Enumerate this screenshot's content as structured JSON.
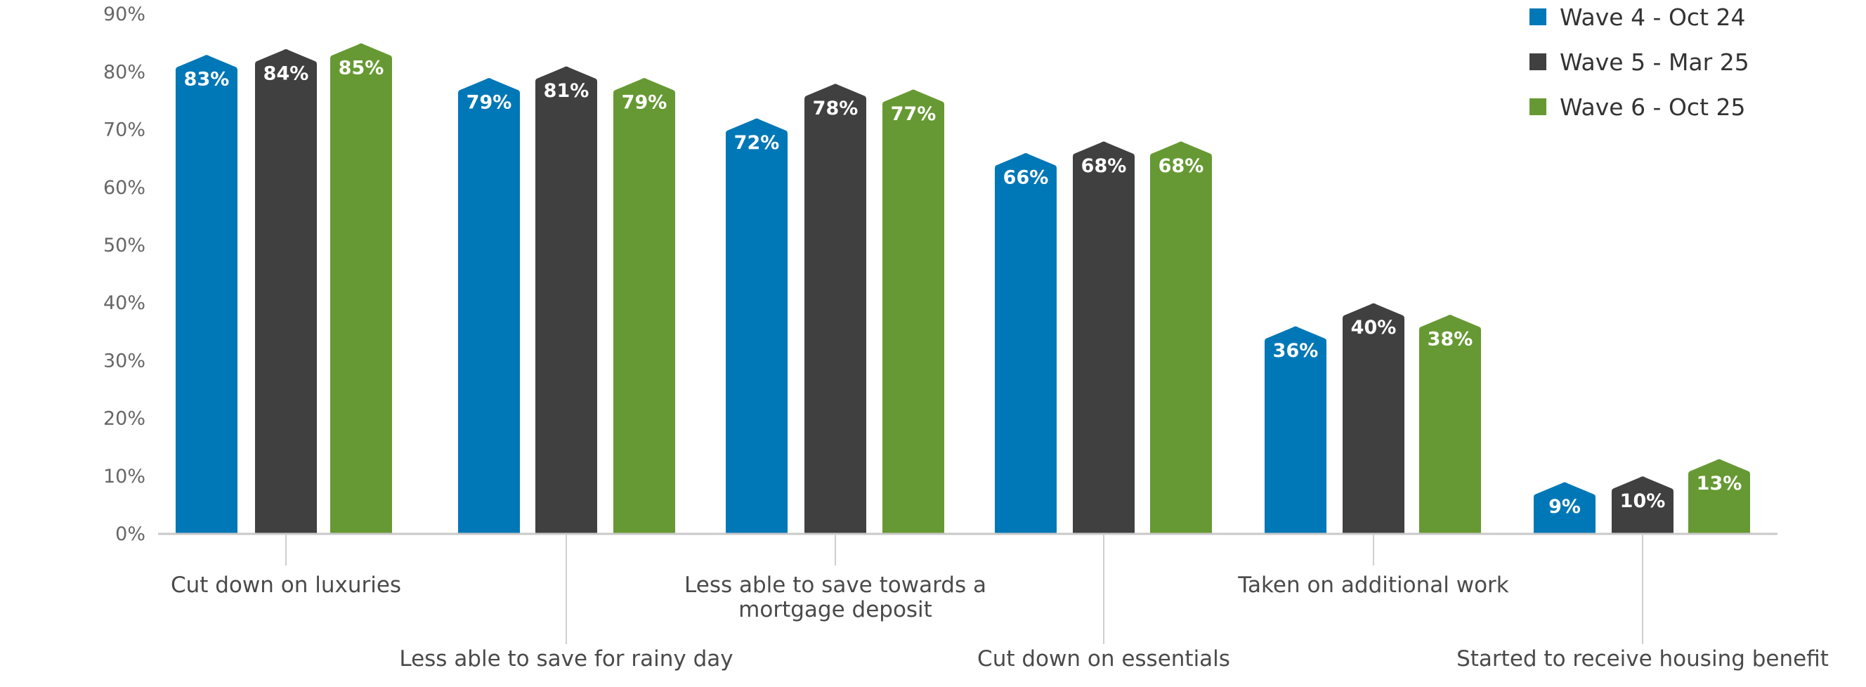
{
  "chart_data": {
    "type": "bar",
    "title": "",
    "xlabel": "",
    "ylabel": "",
    "ylim": [
      0,
      90
    ],
    "yticks": [
      "0%",
      "10%",
      "20%",
      "30%",
      "40%",
      "50%",
      "60%",
      "70%",
      "80%",
      "90%"
    ],
    "grid": false,
    "legend_position": "top-right",
    "categories": [
      "Cut down on luxuries",
      "Less able to save for rainy day",
      "Less able to save towards a mortgage deposit",
      "Cut down on essentials",
      "Taken on additional work",
      "Started to receive housing benefit"
    ],
    "category_label_lines": [
      [
        "Cut down on luxuries"
      ],
      [
        "Less able to save for rainy day"
      ],
      [
        "Less able to save towards a",
        "mortgage deposit"
      ],
      [
        "Cut down on essentials"
      ],
      [
        "Taken on additional work"
      ],
      [
        "Started to receive housing benefit"
      ]
    ],
    "series": [
      {
        "name": "Wave 4 - Oct 24",
        "color": "#0077b6",
        "values": [
          83,
          79,
          72,
          66,
          36,
          9
        ],
        "labels": [
          "83%",
          "79%",
          "72%",
          "66%",
          "36%",
          "9%"
        ]
      },
      {
        "name": "Wave 5 - Mar 25",
        "color": "#404040",
        "values": [
          84,
          81,
          78,
          68,
          40,
          10
        ],
        "labels": [
          "84%",
          "81%",
          "78%",
          "68%",
          "40%",
          "10%"
        ]
      },
      {
        "name": "Wave 6 - Oct 25",
        "color": "#669933",
        "values": [
          85,
          79,
          77,
          68,
          38,
          13
        ],
        "labels": [
          "85%",
          "79%",
          "77%",
          "68%",
          "38%",
          "13%"
        ]
      }
    ]
  }
}
